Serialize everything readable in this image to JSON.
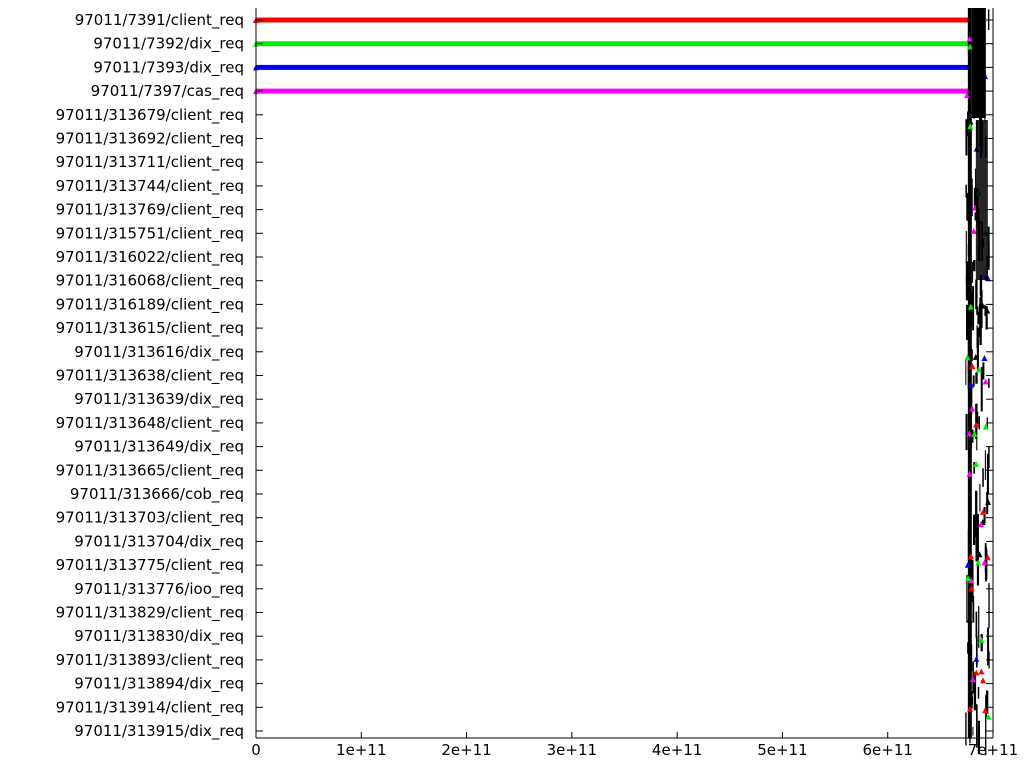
{
  "chart_data": {
    "type": "timeline",
    "title": "",
    "xlabel": "",
    "ylabel": "",
    "xlim": [
      0,
      700000000000
    ],
    "x_ticks": [
      {
        "value": 0,
        "label": "0"
      },
      {
        "value": 100000000000,
        "label": "1e+11"
      },
      {
        "value": 200000000000,
        "label": "2e+11"
      },
      {
        "value": 300000000000,
        "label": "3e+11"
      },
      {
        "value": 400000000000,
        "label": "4e+11"
      },
      {
        "value": 500000000000,
        "label": "5e+11"
      },
      {
        "value": 600000000000,
        "label": "6e+11"
      },
      {
        "value": 700000000000,
        "label": "7e+11"
      }
    ],
    "rows": [
      "97011/7391/client_req",
      "97011/7392/dix_req",
      "97011/7393/dix_req",
      "97011/7397/cas_req",
      "97011/313679/client_req",
      "97011/313692/client_req",
      "97011/313711/client_req",
      "97011/313744/client_req",
      "97011/313769/client_req",
      "97011/315751/client_req",
      "97011/316022/client_req",
      "97011/316068/client_req",
      "97011/316189/client_req",
      "97011/313615/client_req",
      "97011/313616/dix_req",
      "97011/313638/client_req",
      "97011/313639/dix_req",
      "97011/313648/client_req",
      "97011/313649/dix_req",
      "97011/313665/client_req",
      "97011/313666/cob_req",
      "97011/313703/client_req",
      "97011/313704/dix_req",
      "97011/313775/client_req",
      "97011/313776/ioo_req",
      "97011/313829/client_req",
      "97011/313830/dix_req",
      "97011/313893/client_req",
      "97011/313894/dix_req",
      "97011/313914/client_req",
      "97011/313915/dix_req"
    ],
    "series": [
      {
        "row": 0,
        "x_start": 0,
        "x_end": 678000000000,
        "color": "#ff0000"
      },
      {
        "row": 1,
        "x_start": 0,
        "x_end": 678000000000,
        "color": "#00ee00"
      },
      {
        "row": 2,
        "x_start": 0,
        "x_end": 678000000000,
        "color": "#0000ff"
      },
      {
        "row": 3,
        "x_start": 0,
        "x_end": 678000000000,
        "color": "#ff00ff"
      }
    ],
    "grid": false,
    "legend": "none"
  },
  "colors": {
    "red": "#ff0000",
    "green": "#00ee00",
    "blue": "#0000ff",
    "magenta": "#ff00ff",
    "axis": "#000000"
  }
}
